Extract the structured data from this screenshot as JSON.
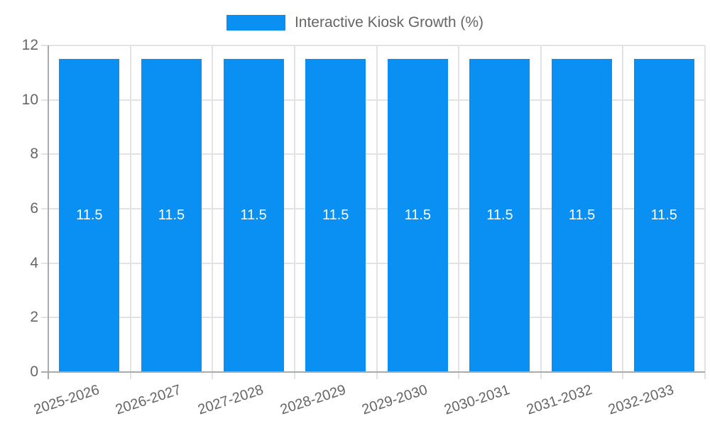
{
  "chart_data": {
    "type": "bar",
    "title": "Interactive Kiosk Growth (%)",
    "legend_label": "Interactive Kiosk Growth (%)",
    "legend_position": "top-center",
    "categories": [
      "2025-2026",
      "2026-2027",
      "2027-2028",
      "2028-2029",
      "2029-2030",
      "2030-2031",
      "2031-2032",
      "2032-2033"
    ],
    "values": [
      11.5,
      11.5,
      11.5,
      11.5,
      11.5,
      11.5,
      11.5,
      11.5
    ],
    "bar_value_labels": [
      "11.5",
      "11.5",
      "11.5",
      "11.5",
      "11.5",
      "11.5",
      "11.5",
      "11.5"
    ],
    "xlabel": "",
    "ylabel": "",
    "ylim": [
      0,
      12
    ],
    "yticks": [
      0,
      2,
      4,
      6,
      8,
      10,
      12
    ],
    "grid": true,
    "colors": {
      "bar": "#0a8ff2",
      "grid_line": "#e3e3e3",
      "zero_line": "#aaaaaa",
      "axis_text": "#666666",
      "legend_text": "#666666",
      "bar_value_text": "#ffffff",
      "background": "#ffffff"
    }
  }
}
